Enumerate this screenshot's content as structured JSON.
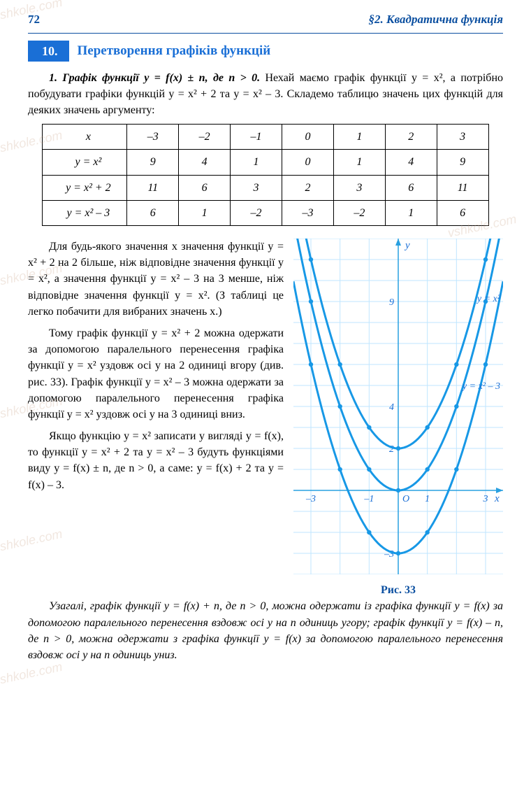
{
  "header": {
    "page_number": "72",
    "chapter": "§2. Квадратична функція"
  },
  "section": {
    "number": "10.",
    "title": "Перетворення графіків функцій"
  },
  "intro": {
    "lead_bold": "1. Графік функції y = f(x) ± n, де n > 0.",
    "rest": "Нехай маємо графік функції y = x², а потрібно побудувати графіки функцій y = x² + 2 та y = x² – 3. Складемо таблицю значень цих функцій для деяких значень аргументу:"
  },
  "table": {
    "x_label": "x",
    "columns": [
      "–3",
      "–2",
      "–1",
      "0",
      "1",
      "2",
      "3"
    ],
    "rows": [
      {
        "label": "y = x²",
        "values": [
          "9",
          "4",
          "1",
          "0",
          "1",
          "4",
          "9"
        ]
      },
      {
        "label": "y = x² + 2",
        "values": [
          "11",
          "6",
          "3",
          "2",
          "3",
          "6",
          "11"
        ]
      },
      {
        "label": "y = x² – 3",
        "values": [
          "6",
          "1",
          "–2",
          "–3",
          "–2",
          "1",
          "6"
        ]
      }
    ]
  },
  "body": {
    "p1": "Для будь-якого значення x значення функції y = x² + 2 на 2 більше, ніж відповідне значення функції y = x², а значення функції y = x² – 3 на 3 менше, ніж відповідне значення функції y = x². (З таблиці це легко побачити для вибраних значень x.)",
    "p2": "Тому графік функції y = x² + 2 можна одержати за допомогою паралельного перенесення графіка функції y = x² уздовж осі y на 2 одиниці вгору (див. рис. 33). Графік функції y = x² – 3 можна одержати за допомогою паралельного перенесення графіка функції y = x² уздовж осі y на 3 одиниці вниз.",
    "p3": "Якщо функцію y = x² записати у вигляді y = f(x), то функції y = x² + 2 та y = x² – 3 будуть функціями виду y = f(x) ± n, де n > 0, а саме: y = f(x) + 2 та y = f(x) – 3.",
    "p4_italic": "Узагалі, графік функції y = f(x) + n, де n > 0, можна одержати із графіка функції y = f(x) за допомогою паралельного перенесення вздовж осі y на n одиниць угору; графік функції y = f(x) – n, де n > 0, можна одержати з графіка функції y = f(x) за допомогою паралельного перенесення вздовж осі y на n одиниць униз."
  },
  "figure": {
    "caption": "Рис. 33",
    "grid_color": "#bfe6ff",
    "axis_color": "#29a0e0",
    "curve_color": "#1798e6",
    "text_color": "#1a6fd6",
    "xlim": [
      -3.6,
      3.6
    ],
    "ylim": [
      -4,
      12
    ],
    "xtick_labels": [
      "–3",
      "–1",
      "1",
      "3"
    ],
    "xtick_pos": [
      -3,
      -1,
      1,
      3
    ],
    "ytick_labels": [
      "–3",
      "2",
      "4",
      "9"
    ],
    "ytick_pos": [
      -3,
      2,
      4,
      9
    ],
    "origin_label": "O",
    "x_axis_label": "x",
    "y_axis_label": "y",
    "curves": [
      {
        "label": "y = x² + 2",
        "shift": 2
      },
      {
        "label": "y = x²",
        "shift": 0
      },
      {
        "label": "y = x² – 3",
        "shift": -3
      }
    ]
  },
  "watermark_text": "vshkole.com"
}
